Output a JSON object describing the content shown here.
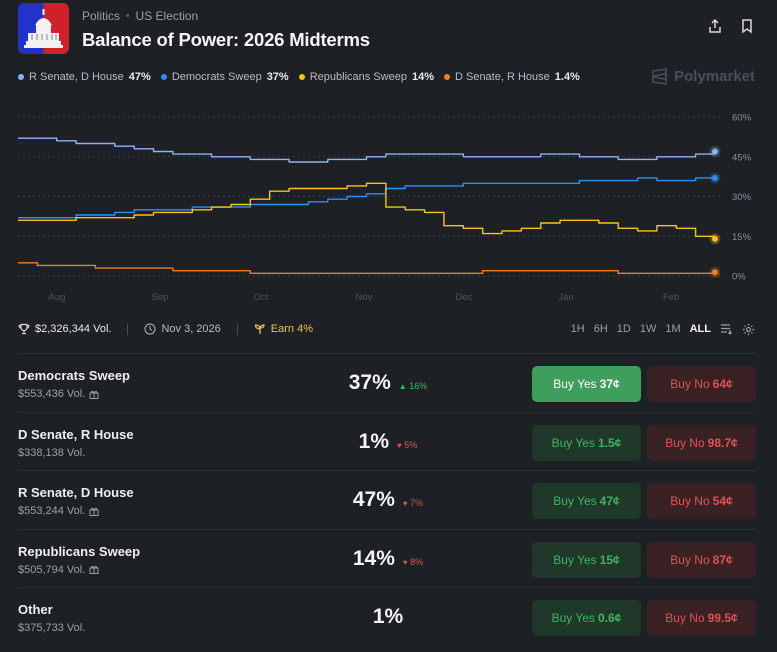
{
  "header": {
    "breadcrumb": [
      "Politics",
      "US Election"
    ],
    "title": "Balance of Power: 2026 Midterms"
  },
  "legend": [
    {
      "label": "R Senate, D House",
      "value": "47%",
      "color": "#8ab4f8"
    },
    {
      "label": "Democrats Sweep",
      "value": "37%",
      "color": "#2d8ff0"
    },
    {
      "label": "Republicans Sweep",
      "value": "14%",
      "color": "#f5c518"
    },
    {
      "label": "D Senate, R House",
      "value": "1.4%",
      "color": "#f07f1c"
    }
  ],
  "brand": "Polymarket",
  "chart_data": {
    "type": "line",
    "x_labels": [
      "Aug",
      "Sep",
      "Oct",
      "Nov",
      "Dec",
      "Jan",
      "Feb"
    ],
    "y_ticks": [
      "60%",
      "45%",
      "30%",
      "15%",
      "0%"
    ],
    "ylim": [
      0,
      60
    ],
    "grid": true,
    "series": [
      {
        "name": "R Senate, D House",
        "color": "#8ab4f8",
        "values": [
          52,
          52,
          51,
          50,
          50,
          49,
          48,
          47,
          46,
          46,
          45,
          45,
          44,
          44,
          43,
          43,
          44,
          44,
          45,
          46,
          46,
          46,
          46,
          45,
          45,
          45,
          45,
          46,
          46,
          45,
          45,
          44,
          44,
          45,
          45,
          46,
          47
        ]
      },
      {
        "name": "Democrats Sweep",
        "color": "#2d8ff0",
        "values": [
          22,
          22,
          22,
          23,
          23,
          24,
          25,
          25,
          25,
          26,
          26,
          26,
          27,
          27,
          27,
          28,
          29,
          30,
          31,
          33,
          34,
          34,
          34,
          35,
          35,
          35,
          35,
          35,
          35,
          36,
          36,
          36,
          37,
          36,
          36,
          37,
          37
        ]
      },
      {
        "name": "Republicans Sweep",
        "color": "#f5c518",
        "values": [
          21,
          21,
          21,
          22,
          22,
          22,
          23,
          24,
          24,
          25,
          26,
          27,
          29,
          32,
          33,
          33,
          33,
          34,
          35,
          26,
          25,
          24,
          19,
          18,
          16,
          17,
          18,
          20,
          21,
          21,
          20,
          18,
          17,
          19,
          18,
          15,
          14
        ]
      },
      {
        "name": "D Senate, R House",
        "color": "#f07f1c",
        "values": [
          5,
          4,
          4,
          4,
          3,
          3,
          3,
          3,
          2,
          2,
          2,
          2,
          1,
          1,
          1,
          1,
          1,
          1,
          1,
          1,
          1,
          1,
          1,
          1,
          2,
          2,
          2,
          2,
          2,
          2,
          2,
          1,
          1,
          1,
          1,
          1,
          1.4
        ]
      }
    ]
  },
  "stats": {
    "volume": "$2,326,344 Vol.",
    "date": "Nov 3, 2026",
    "earn": "Earn 4%"
  },
  "ranges": [
    "1H",
    "6H",
    "1D",
    "1W",
    "1M",
    "ALL"
  ],
  "active_range": "ALL",
  "outcomes": [
    {
      "name": "Democrats Sweep",
      "vol": "$553,436 Vol.",
      "gift": true,
      "pct": "37%",
      "change": "16%",
      "dir": "up",
      "yes_label": "Buy Yes",
      "yes_price": "37¢",
      "no_label": "Buy No",
      "no_price": "64¢",
      "active": true
    },
    {
      "name": "D Senate, R House",
      "vol": "$338,138 Vol.",
      "gift": false,
      "pct": "1%",
      "change": "5%",
      "dir": "down",
      "yes_label": "Buy Yes",
      "yes_price": "1.5¢",
      "no_label": "Buy No",
      "no_price": "98.7¢",
      "active": false
    },
    {
      "name": "R Senate, D House",
      "vol": "$553,244 Vol.",
      "gift": true,
      "pct": "47%",
      "change": "7%",
      "dir": "down",
      "yes_label": "Buy Yes",
      "yes_price": "47¢",
      "no_label": "Buy No",
      "no_price": "54¢",
      "active": false
    },
    {
      "name": "Republicans Sweep",
      "vol": "$505,794 Vol.",
      "gift": true,
      "pct": "14%",
      "change": "8%",
      "dir": "down",
      "yes_label": "Buy Yes",
      "yes_price": "15¢",
      "no_label": "Buy No",
      "no_price": "87¢",
      "active": false
    },
    {
      "name": "Other",
      "vol": "$375,733 Vol.",
      "gift": false,
      "pct": "1%",
      "change": "",
      "dir": "",
      "yes_label": "Buy Yes",
      "yes_price": "0.6¢",
      "no_label": "Buy No",
      "no_price": "99.5¢",
      "active": false
    }
  ]
}
